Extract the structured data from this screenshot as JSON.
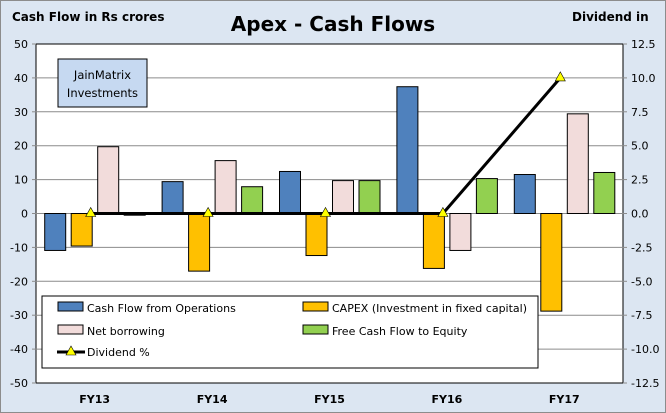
{
  "chart_data": {
    "type": "bar",
    "title": "Apex - Cash Flows",
    "ylabel": "Cash Flow in Rs crores",
    "y2label": "Dividend in",
    "xlabel": "",
    "categories": [
      "FY13",
      "FY14",
      "FY15",
      "FY16",
      "FY17"
    ],
    "ylim": [
      -50,
      50
    ],
    "yticks": [
      50,
      40,
      30,
      20,
      10,
      0,
      -10,
      -20,
      -30,
      -40,
      -50
    ],
    "y2lim": [
      -12.5,
      12.5
    ],
    "y2ticks": [
      "12.5",
      "10.0",
      "7.5",
      "5.0",
      "2.5",
      "0.0",
      "-2.5",
      "-5.0",
      "-7.5",
      "-10.0",
      "-12.5"
    ],
    "grid": true,
    "legend_position": "bottom-inside",
    "series": [
      {
        "name": "Cash Flow from Operations",
        "type": "bar",
        "axis": "left",
        "color": "#4f81bd",
        "values": [
          -10.9,
          9.4,
          12.4,
          37.4,
          11.5
        ]
      },
      {
        "name": "CAPEX (Investment in fixed capital)",
        "type": "bar",
        "axis": "left",
        "color": "#ffc000",
        "values": [
          -9.6,
          -17.0,
          -12.4,
          -16.2,
          -28.8
        ]
      },
      {
        "name": "Net borrowing",
        "type": "bar",
        "axis": "left",
        "color": "#f2dcdb",
        "values": [
          19.7,
          15.6,
          9.7,
          -10.9,
          29.4
        ]
      },
      {
        "name": "Free Cash Flow to Equity",
        "type": "bar",
        "axis": "left",
        "color": "#92d050",
        "values": [
          -0.5,
          7.9,
          9.7,
          10.3,
          12.1
        ]
      },
      {
        "name": "Dividend %",
        "type": "line",
        "axis": "right",
        "color": "#000000",
        "marker": "triangle",
        "marker_color": "#ffff00",
        "values": [
          0,
          0,
          0,
          0,
          10
        ]
      }
    ],
    "annotations": [
      "JainMatrix Investments"
    ]
  },
  "watermark": {
    "line1": "JainMatrix",
    "line2": "Investments"
  }
}
